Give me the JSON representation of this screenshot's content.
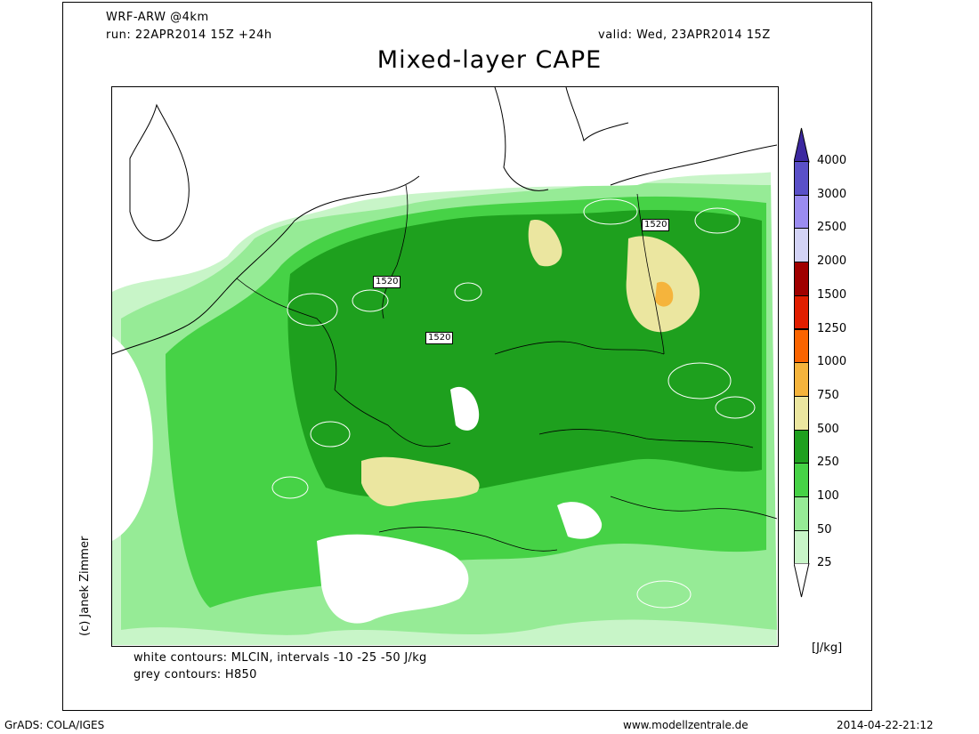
{
  "header": {
    "model": "WRF-ARW @4km",
    "run": "run: 22APR2014 15Z +24h",
    "valid": "valid: Wed, 23APR2014 15Z",
    "title": "Mixed-layer CAPE"
  },
  "map": {
    "contour_labels": [
      "1520",
      "1520",
      "1520"
    ],
    "colors": {
      "c25": "#c8f5c8",
      "c50": "#96eb96",
      "c100": "#46d246",
      "c250": "#1ea01e",
      "c500": "#ebe6a0",
      "c750": "#f5b43c"
    }
  },
  "colorbar": {
    "units": "[J/kg]",
    "levels": [
      {
        "label": "4000",
        "color": "#5a50c8"
      },
      {
        "label": "3000",
        "color": "#9b8cf0"
      },
      {
        "label": "2500",
        "color": "#d2d2f5"
      },
      {
        "label": "2000",
        "color": "#a00000"
      },
      {
        "label": "1500",
        "color": "#e11e00"
      },
      {
        "label": "1250",
        "color": "#fa6400"
      },
      {
        "label": "1000",
        "color": "#f5b43c"
      },
      {
        "label": "750",
        "color": "#ebe6a0"
      },
      {
        "label": "500",
        "color": "#1ea01e"
      },
      {
        "label": "250",
        "color": "#46d246"
      },
      {
        "label": "100",
        "color": "#96eb96"
      },
      {
        "label": "50",
        "color": "#c8f5c8"
      },
      {
        "label": "25",
        "color": "#ffffff"
      }
    ],
    "top_arrow_color": "#3c28a0"
  },
  "notes": {
    "white_contours": "white contours: MLCIN, intervals -10 -25 -50 J/kg",
    "grey_contours": "grey contours: H850"
  },
  "copyright": "(c) Janek Zimmer",
  "footer": {
    "left": "GrADS: COLA/IGES",
    "center": "www.modellzentrale.de",
    "right": "2014-04-22-21:12"
  }
}
